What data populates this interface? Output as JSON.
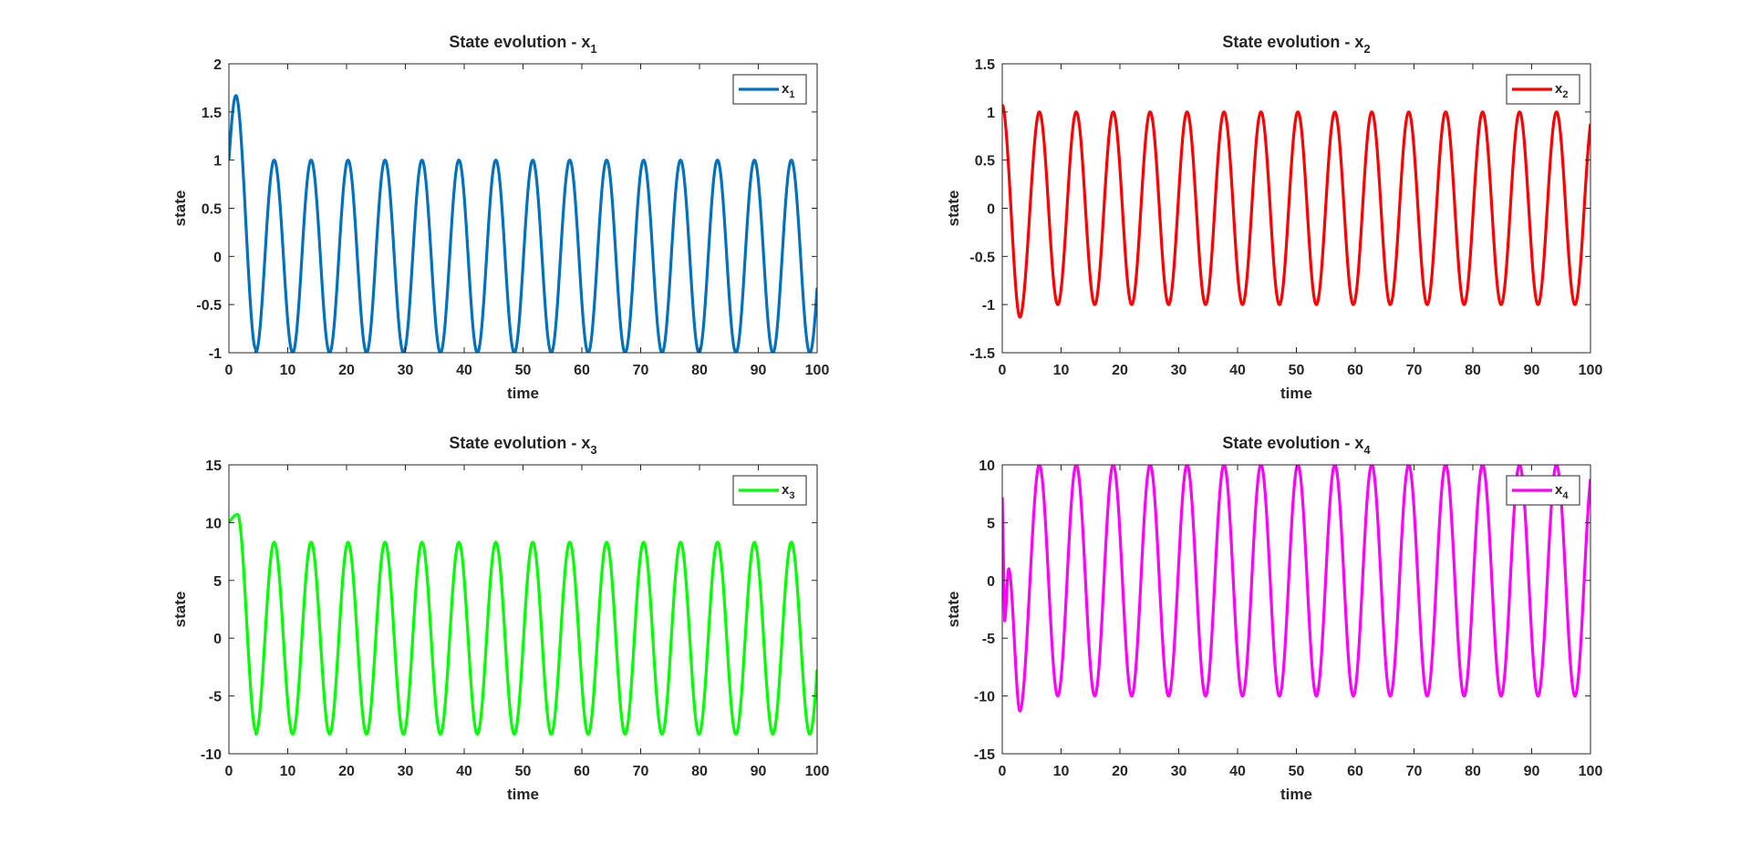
{
  "chart_data": [
    {
      "type": "line",
      "title": "State evolution - x",
      "title_subscript": "1",
      "xlabel": "time",
      "ylabel": "state",
      "xlim": [
        0,
        100
      ],
      "ylim": [
        -1,
        2
      ],
      "xticks": [
        0,
        10,
        20,
        30,
        40,
        50,
        60,
        70,
        80,
        90,
        100
      ],
      "yticks": [
        -1,
        -0.5,
        0,
        0.5,
        1,
        1.5,
        2
      ],
      "legend_position": "top-right",
      "grid": false,
      "series": [
        {
          "name": "x",
          "name_subscript": "1",
          "color": "#0072bd",
          "curve": {
            "initial_value": 1.0,
            "transient_peak": {
              "t": 1.2,
              "value": 1.67
            },
            "amplitude": 1.0,
            "offset": 0,
            "period": 6.28,
            "first_crest_t": 7.7,
            "end_value": -0.5
          }
        }
      ]
    },
    {
      "type": "line",
      "title": "State evolution - x",
      "title_subscript": "2",
      "xlabel": "time",
      "ylabel": "state",
      "xlim": [
        0,
        100
      ],
      "ylim": [
        -1.5,
        1.5
      ],
      "xticks": [
        0,
        10,
        20,
        30,
        40,
        50,
        60,
        70,
        80,
        90,
        100
      ],
      "yticks": [
        -1.5,
        -1,
        -0.5,
        0,
        0.5,
        1,
        1.5
      ],
      "legend_position": "top-right",
      "grid": false,
      "series": [
        {
          "name": "x",
          "name_subscript": "2",
          "color": "#ff0000",
          "curve": {
            "initial_value": 1.07,
            "transient_trough": {
              "t": 3.0,
              "value": -1.13
            },
            "amplitude": 1.0,
            "offset": 0,
            "period": 6.28,
            "first_crest_t": 6.3,
            "end_value": 0.85
          }
        }
      ]
    },
    {
      "type": "line",
      "title": "State evolution - x",
      "title_subscript": "3",
      "xlabel": "time",
      "ylabel": "state",
      "xlim": [
        0,
        100
      ],
      "ylim": [
        -10,
        15
      ],
      "xticks": [
        0,
        10,
        20,
        30,
        40,
        50,
        60,
        70,
        80,
        90,
        100
      ],
      "yticks": [
        -10,
        -5,
        0,
        5,
        10,
        15
      ],
      "legend_position": "top-right",
      "grid": false,
      "series": [
        {
          "name": "x",
          "name_subscript": "3",
          "color": "#00ff00",
          "curve": {
            "initial_value": 10.0,
            "transient_peak": {
              "t": 1.5,
              "value": 10.7
            },
            "amplitude": 8.3,
            "offset": 0,
            "period": 6.28,
            "first_crest_t": 7.7,
            "end_value": -5.0
          }
        }
      ]
    },
    {
      "type": "line",
      "title": "State evolution - x",
      "title_subscript": "4",
      "xlabel": "time",
      "ylabel": "state",
      "xlim": [
        0,
        100
      ],
      "ylim": [
        -15,
        10
      ],
      "xticks": [
        0,
        10,
        20,
        30,
        40,
        50,
        60,
        70,
        80,
        90,
        100
      ],
      "yticks": [
        -15,
        -10,
        -5,
        0,
        5,
        10
      ],
      "legend_position": "top-right",
      "grid": false,
      "series": [
        {
          "name": "x",
          "name_subscript": "4",
          "color": "#ff00ff",
          "curve": {
            "initial_value": 7.2,
            "transient_trough": {
              "t": 3.0,
              "value": -11.3
            },
            "amplitude": 10.0,
            "offset": 0,
            "period": 6.28,
            "first_crest_t": 6.3,
            "end_value": 7.5,
            "shoulder_value": 1.0
          }
        }
      ]
    }
  ]
}
